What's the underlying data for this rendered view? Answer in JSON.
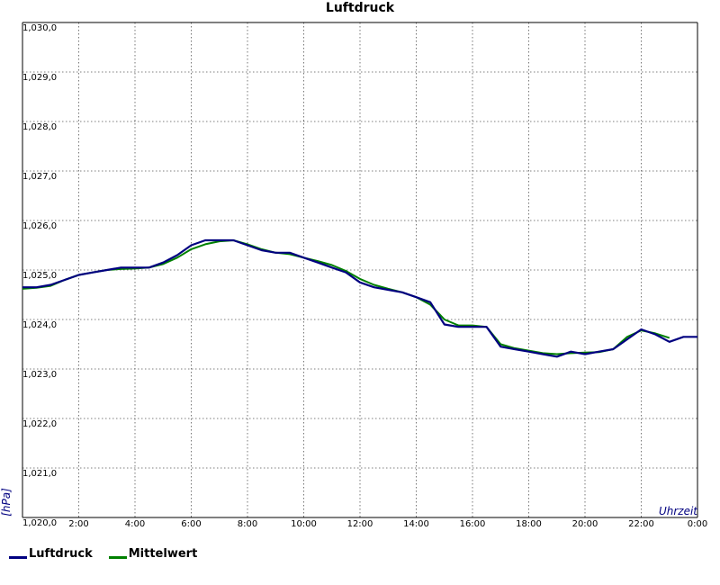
{
  "chart_data": {
    "type": "line",
    "title": "Luftdruck",
    "xlabel": "Uhrzeit",
    "ylabel": "[hPa]",
    "xlim": [
      0,
      24
    ],
    "ylim": [
      1020.0,
      1030.0
    ],
    "x_ticks": [
      "2:00",
      "4:00",
      "6:00",
      "8:00",
      "10:00",
      "12:00",
      "14:00",
      "16:00",
      "18:00",
      "20:00",
      "22:00",
      "0:00"
    ],
    "y_ticks": [
      "1,020,0",
      "1,021,0",
      "1,022,0",
      "1,023,0",
      "1,024,0",
      "1,025,0",
      "1,026,0",
      "1,027,0",
      "1,028,0",
      "1,029,0",
      "1,030,0"
    ],
    "grid": true,
    "legend_position": "bottom-left",
    "series": [
      {
        "name": "Luftdruck",
        "color": "#000080",
        "x": [
          0,
          0.5,
          1,
          1.5,
          2,
          2.5,
          3,
          3.5,
          4,
          4.5,
          5,
          5.5,
          6,
          6.5,
          7,
          7.5,
          8,
          8.5,
          9,
          9.5,
          10,
          10.5,
          11,
          11.5,
          12,
          12.5,
          13,
          13.5,
          14,
          14.5,
          15,
          15.5,
          16,
          16.5,
          17,
          17.5,
          18,
          18.5,
          19,
          19.5,
          20,
          20.5,
          21,
          21.5,
          22,
          22.5,
          23,
          23.5,
          24
        ],
        "values": [
          1024.65,
          1024.65,
          1024.7,
          1024.8,
          1024.9,
          1024.95,
          1025.0,
          1025.05,
          1025.05,
          1025.05,
          1025.15,
          1025.3,
          1025.5,
          1025.6,
          1025.6,
          1025.6,
          1025.5,
          1025.4,
          1025.35,
          1025.35,
          1025.25,
          1025.15,
          1025.05,
          1024.95,
          1024.75,
          1024.65,
          1024.6,
          1024.55,
          1024.45,
          1024.35,
          1023.9,
          1023.85,
          1023.85,
          1023.85,
          1023.45,
          1023.4,
          1023.35,
          1023.3,
          1023.25,
          1023.35,
          1023.3,
          1023.35,
          1023.4,
          1023.6,
          1023.8,
          1023.7,
          1023.55,
          1023.65,
          1023.65
        ]
      },
      {
        "name": "Mittelwert",
        "color": "#008000",
        "x": [
          0,
          0.5,
          1,
          1.5,
          2,
          2.5,
          3,
          3.5,
          4,
          4.5,
          5,
          5.5,
          6,
          6.5,
          7,
          7.5,
          8,
          8.5,
          9,
          9.5,
          10,
          10.5,
          11,
          11.5,
          12,
          12.5,
          13,
          13.5,
          14,
          14.5,
          15,
          15.5,
          16,
          16.5,
          17,
          17.5,
          18,
          18.5,
          19,
          19.5,
          20,
          20.5,
          21,
          21.5,
          22,
          22.5,
          23
        ],
        "values": [
          1024.62,
          1024.64,
          1024.68,
          1024.8,
          1024.9,
          1024.95,
          1025.0,
          1025.02,
          1025.03,
          1025.05,
          1025.12,
          1025.25,
          1025.42,
          1025.52,
          1025.58,
          1025.6,
          1025.52,
          1025.42,
          1025.35,
          1025.32,
          1025.25,
          1025.18,
          1025.1,
          1024.98,
          1024.82,
          1024.7,
          1024.62,
          1024.55,
          1024.45,
          1024.3,
          1024.0,
          1023.88,
          1023.88,
          1023.85,
          1023.5,
          1023.42,
          1023.37,
          1023.32,
          1023.3,
          1023.32,
          1023.33,
          1023.34,
          1023.4,
          1023.65,
          1023.78,
          1023.72,
          1023.63
        ]
      }
    ]
  }
}
